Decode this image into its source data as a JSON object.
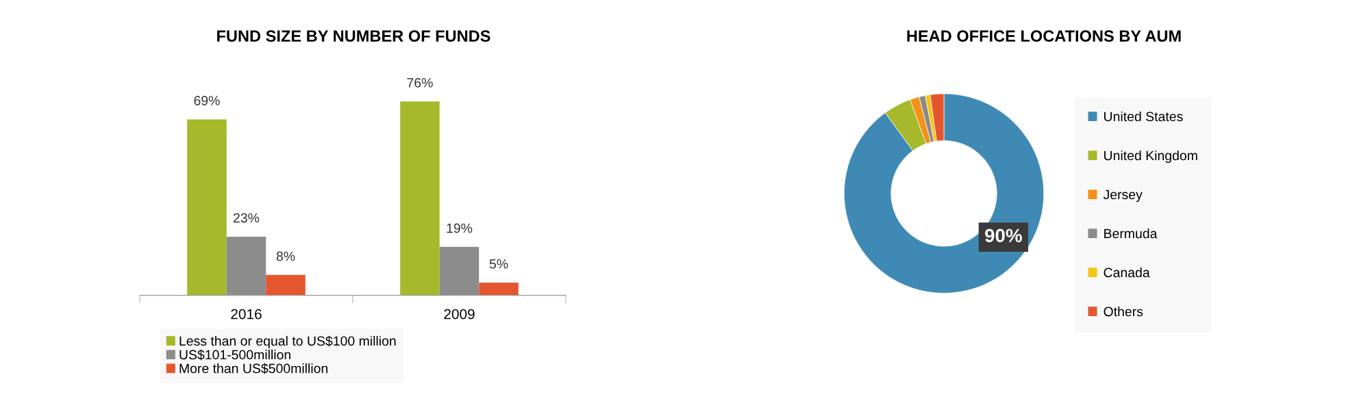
{
  "chart_data": [
    {
      "type": "bar",
      "title": "FUND SIZE BY NUMBER OF FUNDS",
      "categories": [
        "2016",
        "2009"
      ],
      "series": [
        {
          "name": "Less than or equal to US$100 million",
          "color": "#a5b92a",
          "values": [
            69,
            76
          ],
          "value_labels": [
            "69%",
            "76%"
          ]
        },
        {
          "name": "US$101-500million",
          "color": "#8c8c8c",
          "values": [
            23,
            19
          ],
          "value_labels": [
            "23%",
            "19%"
          ]
        },
        {
          "name": "More than US$500million",
          "color": "#e4572e",
          "values": [
            8,
            5
          ],
          "value_labels": [
            "8%",
            "5%"
          ]
        }
      ],
      "tick_labels": "x",
      "legend": "bottom",
      "grid": false
    },
    {
      "type": "donut",
      "title": "HEAD OFFICE LOCATIONS BY AUM",
      "categories": [
        "United States",
        "United Kingdom",
        "Jersey",
        "Bermuda",
        "Canada",
        "Others"
      ],
      "values": [
        90,
        4.5,
        1.5,
        1,
        0.8,
        2.2
      ],
      "colors": [
        "#3f8ab5",
        "#a5b92a",
        "#f39219",
        "#8a8a8a",
        "#f7c516",
        "#e4572e"
      ],
      "value_labels": [
        "90%",
        null,
        null,
        null,
        null,
        null
      ],
      "legend": "right"
    }
  ]
}
